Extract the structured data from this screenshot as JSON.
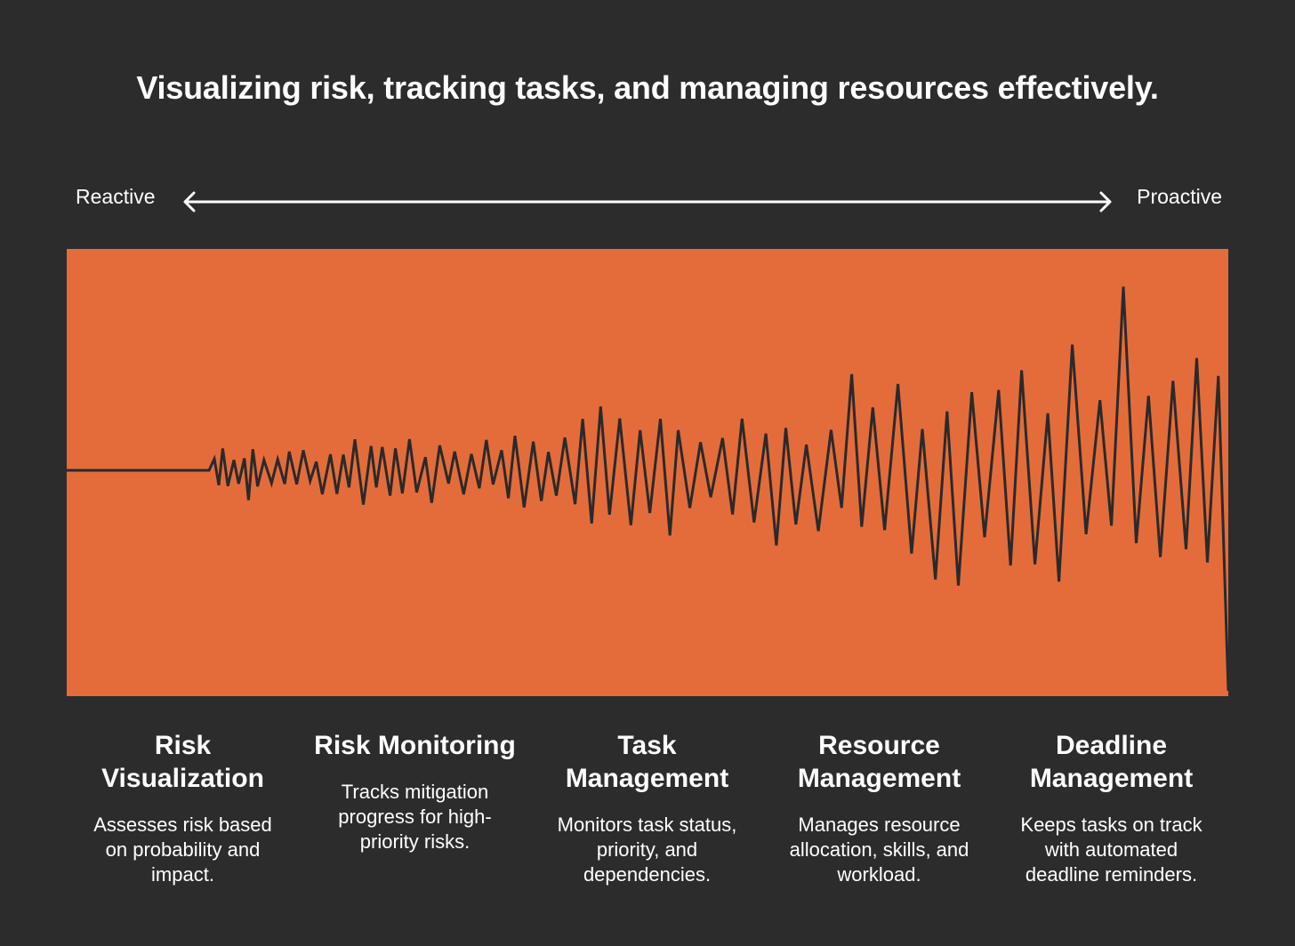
{
  "title": "Visualizing risk, tracking tasks, and managing resources effectively.",
  "scale": {
    "left_label": "Reactive",
    "right_label": "Proactive"
  },
  "colors": {
    "background": "#2c2c2c",
    "panel": "#e46c3b",
    "waveform": "#2a2a2a",
    "text": "#ffffff"
  },
  "stages": [
    {
      "title": "Risk Visualization",
      "description": "Assesses risk based on probability and impact."
    },
    {
      "title": "Risk Monitoring",
      "description": "Tracks mitigation progress for high-priority risks."
    },
    {
      "title": "Task Management",
      "description": "Monitors task status, priority, and dependencies."
    },
    {
      "title": "Resource Management",
      "description": "Manages resource allocation, skills, and workload."
    },
    {
      "title": "Deadline Management",
      "description": "Keeps tasks on track with automated deadline reminders."
    }
  ]
}
